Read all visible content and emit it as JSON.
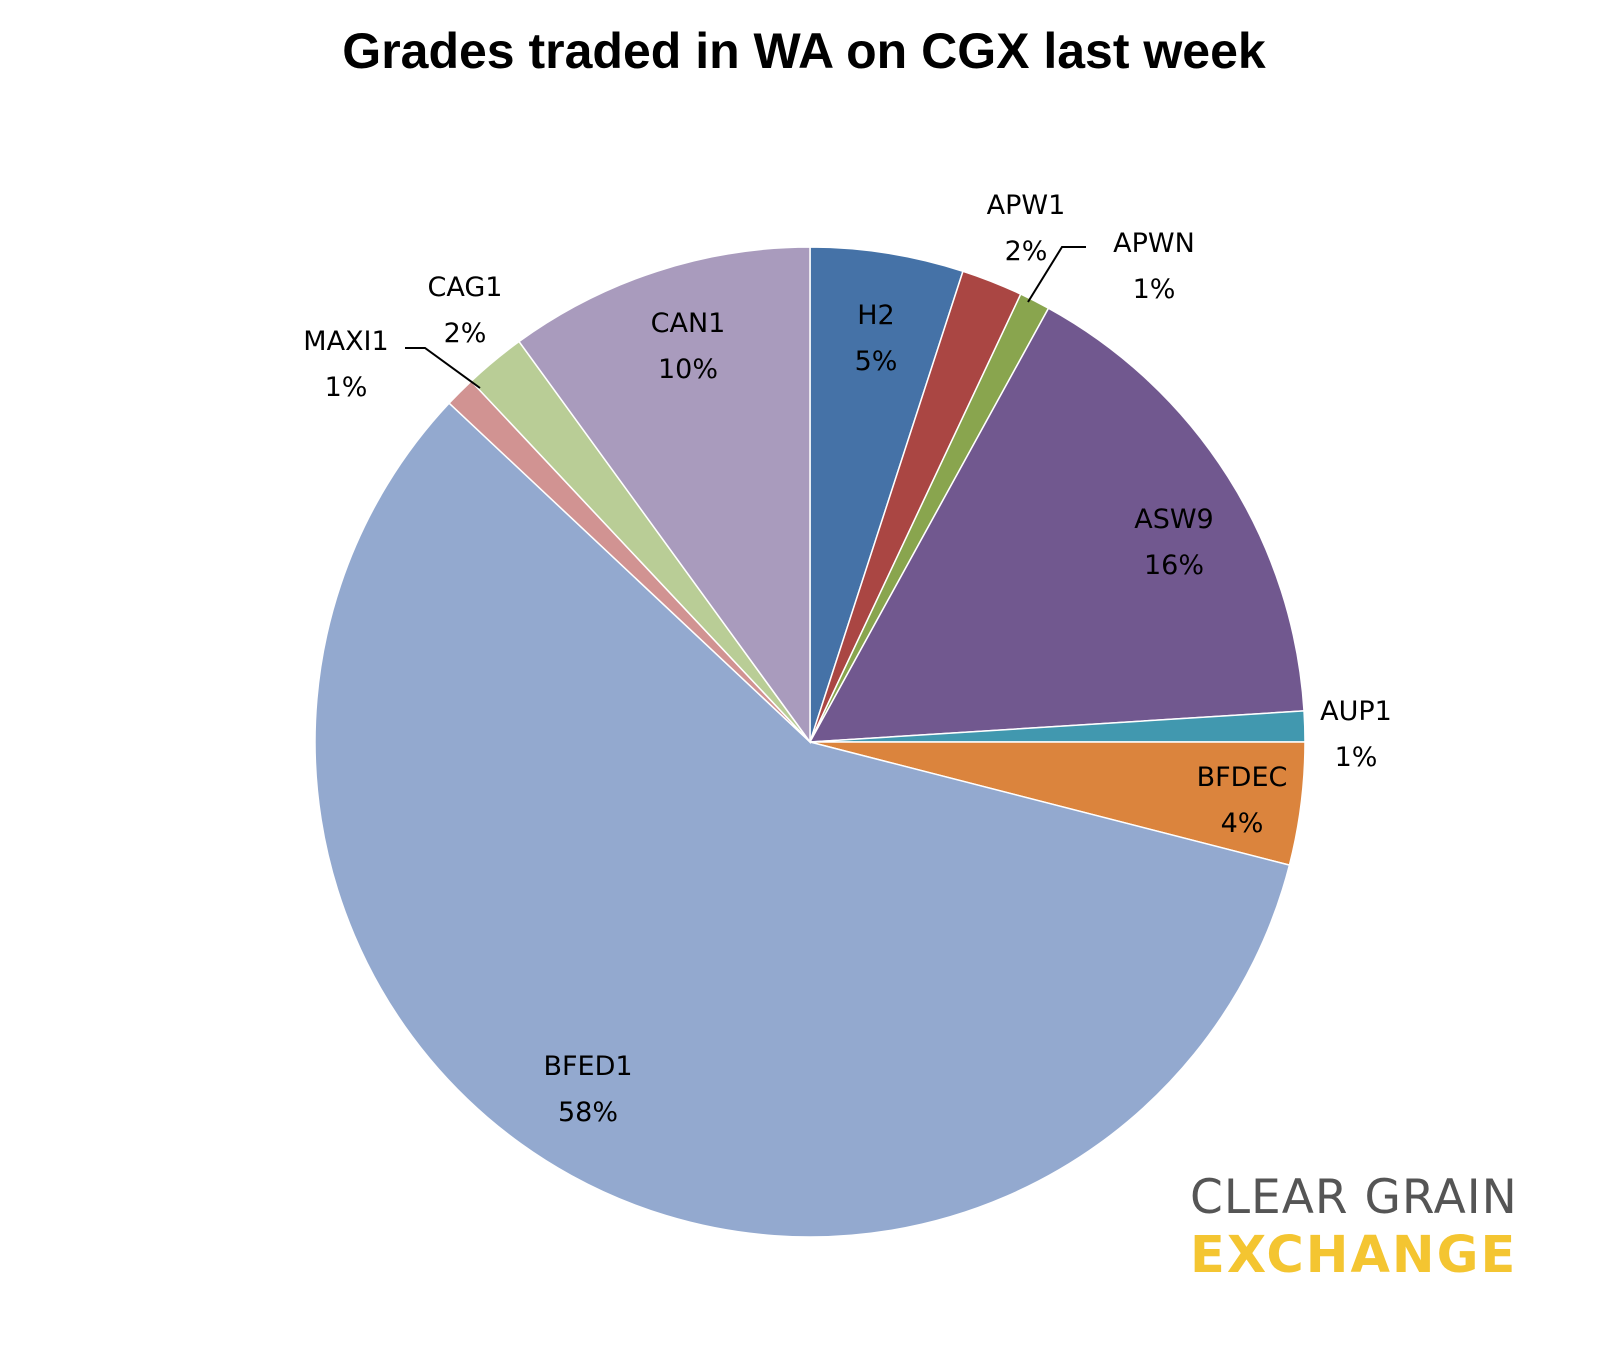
{
  "chart_data": {
    "type": "pie",
    "title": "Grades traded in WA on CGX last week",
    "start_angle_deg": 0,
    "direction": "clockwise",
    "slices": [
      {
        "name": "H2",
        "value": 5,
        "label": "5%",
        "color": "#4572A7"
      },
      {
        "name": "APW1",
        "value": 2,
        "label": "2%",
        "color": "#AA4643"
      },
      {
        "name": "APWN",
        "value": 1,
        "label": "1%",
        "color": "#89A54E"
      },
      {
        "name": "ASW9",
        "value": 16,
        "label": "16%",
        "color": "#71588F"
      },
      {
        "name": "AUP1",
        "value": 1,
        "label": "1%",
        "color": "#4198AF"
      },
      {
        "name": "BFDEC",
        "value": 4,
        "label": "4%",
        "color": "#DB843D"
      },
      {
        "name": "BFED1",
        "value": 58,
        "label": "58%",
        "color": "#93A9CF"
      },
      {
        "name": "MAXI1",
        "value": 1,
        "label": "1%",
        "color": "#D19392"
      },
      {
        "name": "CAG1",
        "value": 2,
        "label": "2%",
        "color": "#B9CD96"
      },
      {
        "name": "CAN1",
        "value": 10,
        "label": "10%",
        "color": "#A99BBD"
      }
    ]
  },
  "logo": {
    "line1": "CLEAR GRAIN",
    "line2": "EXCHANGE",
    "line1_color": "#555555",
    "line2_color": "#F4C531"
  }
}
